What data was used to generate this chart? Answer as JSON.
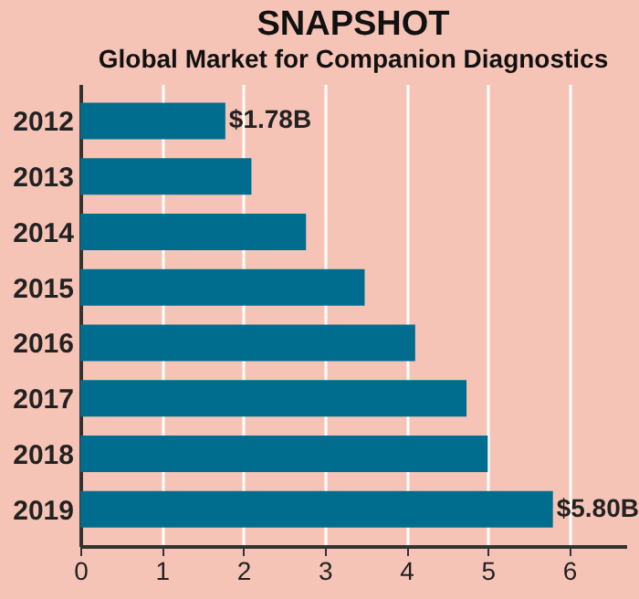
{
  "chart_data": {
    "type": "bar",
    "orientation": "horizontal",
    "title": "SNAPSHOT",
    "subtitle": "Global Market for Companion Diagnostics",
    "categories": [
      "2012",
      "2013",
      "2014",
      "2015",
      "2016",
      "2017",
      "2018",
      "2019"
    ],
    "values": [
      1.78,
      2.1,
      2.77,
      3.49,
      4.11,
      4.74,
      5.0,
      5.8
    ],
    "value_labels": [
      "$1.78B",
      null,
      null,
      null,
      null,
      null,
      null,
      "$5.80B"
    ],
    "color": "#006d8f",
    "xlim": [
      0,
      6.7
    ],
    "xticks": [
      0,
      1,
      2,
      3,
      4,
      5,
      6
    ],
    "grid": "x"
  }
}
